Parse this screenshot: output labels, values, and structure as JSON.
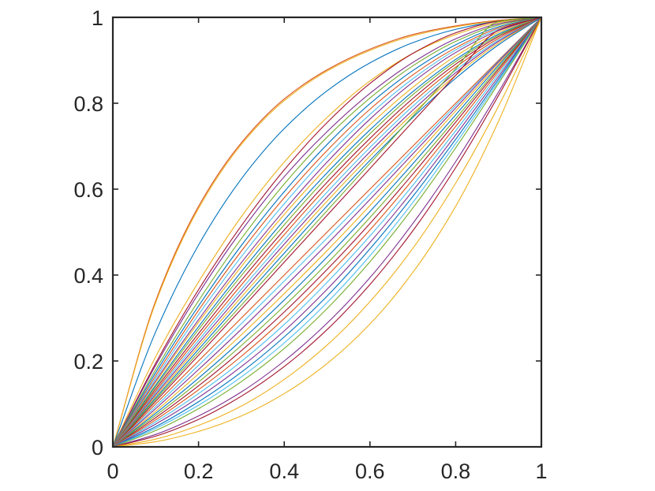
{
  "chart_data": {
    "type": "line",
    "title": "",
    "xlabel": "",
    "ylabel": "",
    "xlim": [
      0,
      1
    ],
    "ylim": [
      0,
      1
    ],
    "grid": false,
    "legend": "none",
    "box": true,
    "x_ticks": [
      "0",
      "0.2",
      "0.4",
      "0.6",
      "0.8",
      "1"
    ],
    "y_ticks": [
      "0",
      "0.2",
      "0.4",
      "0.6",
      "0.8",
      "1"
    ],
    "x_tick_values": [
      0,
      0.2,
      0.4,
      0.6,
      0.8,
      1
    ],
    "y_tick_values": [
      0,
      0.2,
      0.4,
      0.6,
      0.8,
      1
    ],
    "x": [
      0,
      0.1,
      0.2,
      0.3,
      0.4,
      0.5,
      0.6,
      0.7,
      0.8,
      0.9,
      1
    ],
    "palette": [
      "#0072BD",
      "#D95319",
      "#EDB120",
      "#7E2F8E",
      "#77AC30",
      "#4DBEEE",
      "#A2142F"
    ],
    "series": [
      {
        "color": "#D95319",
        "values": [
          0,
          0.34,
          0.56,
          0.708,
          0.81,
          0.878,
          0.926,
          0.96,
          0.98,
          0.993,
          1
        ]
      },
      {
        "color": "#EDB120",
        "values": [
          0,
          0.336,
          0.555,
          0.704,
          0.806,
          0.875,
          0.923,
          0.957,
          0.978,
          0.992,
          1
        ]
      },
      {
        "color": "#0072BD",
        "values": [
          0,
          0.268,
          0.47,
          0.624,
          0.741,
          0.829,
          0.894,
          0.941,
          0.972,
          0.991,
          1
        ]
      },
      {
        "color": "#EDB120",
        "values": [
          0,
          0.21,
          0.384,
          0.536,
          0.663,
          0.767,
          0.852,
          0.916,
          0.96,
          0.988,
          1
        ]
      },
      {
        "color": "#A2142F",
        "values": [
          0,
          0.195,
          0.366,
          0.515,
          0.645,
          0.755,
          0.846,
          0.916,
          0.964,
          0.991,
          1
        ]
      },
      {
        "color": "#7E2F8E",
        "values": [
          0,
          0.19,
          0.357,
          0.503,
          0.629,
          0.734,
          0.823,
          0.895,
          0.95,
          0.985,
          1
        ]
      },
      {
        "color": "#77AC30",
        "values": [
          0,
          0.18,
          0.34,
          0.485,
          0.612,
          0.721,
          0.812,
          0.887,
          0.944,
          0.982,
          1
        ]
      },
      {
        "color": "#0072BD",
        "values": [
          0,
          0.173,
          0.328,
          0.469,
          0.594,
          0.704,
          0.799,
          0.876,
          0.936,
          0.978,
          1
        ]
      },
      {
        "color": "#D95319",
        "values": [
          0,
          0.166,
          0.318,
          0.456,
          0.58,
          0.69,
          0.786,
          0.866,
          0.929,
          0.975,
          1
        ]
      },
      {
        "color": "#4DBEEE",
        "values": [
          0,
          0.16,
          0.308,
          0.443,
          0.566,
          0.677,
          0.774,
          0.857,
          0.924,
          0.972,
          1
        ]
      },
      {
        "color": "#7E2F8E",
        "values": [
          0,
          0.154,
          0.296,
          0.429,
          0.551,
          0.663,
          0.763,
          0.849,
          0.918,
          0.969,
          1
        ]
      },
      {
        "color": "#EDB120",
        "values": [
          0,
          0.15,
          0.29,
          0.42,
          0.541,
          0.651,
          0.75,
          0.837,
          0.91,
          0.965,
          1
        ]
      },
      {
        "color": "#0072BD",
        "values": [
          0,
          0.144,
          0.28,
          0.408,
          0.528,
          0.638,
          0.738,
          0.827,
          0.902,
          0.961,
          1
        ]
      },
      {
        "color": "#77AC30",
        "values": [
          0,
          0.14,
          0.273,
          0.399,
          0.517,
          0.628,
          0.729,
          0.82,
          0.897,
          0.958,
          1
        ]
      },
      {
        "color": "#A2142F",
        "values": [
          0,
          0.135,
          0.264,
          0.388,
          0.505,
          0.616,
          0.718,
          0.811,
          0.891,
          0.955,
          1
        ]
      },
      {
        "color": "#D95319",
        "values": [
          0,
          0.13,
          0.256,
          0.377,
          0.494,
          0.605,
          0.708,
          0.802,
          0.884,
          0.951,
          1
        ]
      },
      {
        "color": "#4DBEEE",
        "values": [
          0,
          0.126,
          0.248,
          0.367,
          0.482,
          0.593,
          0.697,
          0.793,
          0.877,
          0.947,
          1
        ]
      },
      {
        "color": "#7E2F8E",
        "values": [
          0,
          0.122,
          0.241,
          0.358,
          0.472,
          0.582,
          0.687,
          0.784,
          0.871,
          0.944,
          1
        ]
      },
      {
        "color": "#EDB120",
        "values": [
          0,
          0.118,
          0.234,
          0.349,
          0.462,
          0.572,
          0.677,
          0.776,
          0.865,
          0.94,
          1
        ]
      },
      {
        "color": "#0072BD",
        "values": [
          0,
          0.114,
          0.227,
          0.34,
          0.451,
          0.561,
          0.667,
          0.767,
          0.858,
          0.936,
          1
        ]
      },
      {
        "color": "#77AC30",
        "values": [
          0,
          0.11,
          0.22,
          0.33,
          0.44,
          0.55,
          0.66,
          0.77,
          0.88,
          0.99,
          1
        ]
      },
      {
        "color": "#A2142F",
        "values": [
          0,
          0.106,
          0.213,
          0.321,
          0.43,
          0.539,
          0.648,
          0.757,
          0.865,
          0.97,
          1
        ]
      },
      {
        "color": "#D95319",
        "values": [
          0,
          0.1,
          0.2,
          0.3,
          0.4,
          0.5,
          0.6,
          0.7,
          0.8,
          0.9,
          1
        ]
      },
      {
        "color": "#4DBEEE",
        "values": [
          0,
          0.094,
          0.19,
          0.287,
          0.386,
          0.486,
          0.588,
          0.691,
          0.795,
          0.898,
          1
        ]
      },
      {
        "color": "#7E2F8E",
        "values": [
          0,
          0.089,
          0.18,
          0.274,
          0.372,
          0.472,
          0.576,
          0.682,
          0.789,
          0.896,
          1
        ]
      },
      {
        "color": "#EDB120",
        "values": [
          0,
          0.083,
          0.17,
          0.261,
          0.357,
          0.457,
          0.562,
          0.671,
          0.782,
          0.892,
          1
        ]
      },
      {
        "color": "#0072BD",
        "values": [
          0,
          0.078,
          0.16,
          0.248,
          0.342,
          0.442,
          0.548,
          0.659,
          0.773,
          0.888,
          1
        ]
      },
      {
        "color": "#77AC30",
        "values": [
          0,
          0.073,
          0.151,
          0.236,
          0.328,
          0.427,
          0.534,
          0.647,
          0.764,
          0.883,
          1
        ]
      },
      {
        "color": "#A2142F",
        "values": [
          0,
          0.068,
          0.142,
          0.224,
          0.314,
          0.413,
          0.52,
          0.635,
          0.756,
          0.879,
          1
        ]
      },
      {
        "color": "#D95319",
        "values": [
          0,
          0.063,
          0.133,
          0.211,
          0.299,
          0.398,
          0.505,
          0.622,
          0.746,
          0.874,
          1
        ]
      },
      {
        "color": "#4DBEEE",
        "values": [
          0,
          0.058,
          0.124,
          0.199,
          0.285,
          0.383,
          0.491,
          0.609,
          0.736,
          0.868,
          1
        ]
      },
      {
        "color": "#7E2F8E",
        "values": [
          0,
          0.053,
          0.115,
          0.187,
          0.27,
          0.367,
          0.476,
          0.596,
          0.726,
          0.862,
          1
        ]
      },
      {
        "color": "#0072BD",
        "values": [
          0,
          0.047,
          0.105,
          0.174,
          0.256,
          0.351,
          0.461,
          0.583,
          0.716,
          0.856,
          1
        ]
      },
      {
        "color": "#4DBEEE",
        "values": [
          0,
          0.043,
          0.097,
          0.163,
          0.242,
          0.336,
          0.445,
          0.569,
          0.706,
          0.851,
          1
        ]
      },
      {
        "color": "#77AC30",
        "values": [
          0,
          0.038,
          0.089,
          0.152,
          0.229,
          0.322,
          0.431,
          0.556,
          0.696,
          0.846,
          1
        ]
      },
      {
        "color": "#7E2F8E",
        "values": [
          0,
          0.029,
          0.072,
          0.128,
          0.2,
          0.288,
          0.394,
          0.52,
          0.664,
          0.826,
          1
        ]
      },
      {
        "color": "#A2142F",
        "values": [
          0,
          0.025,
          0.064,
          0.118,
          0.187,
          0.273,
          0.378,
          0.503,
          0.65,
          0.818,
          1
        ]
      },
      {
        "color": "#EDB120",
        "values": [
          0,
          0.018,
          0.05,
          0.095,
          0.157,
          0.237,
          0.338,
          0.462,
          0.614,
          0.793,
          1
        ]
      },
      {
        "color": "#EDB120",
        "values": [
          0,
          0.012,
          0.036,
          0.072,
          0.124,
          0.194,
          0.286,
          0.406,
          0.56,
          0.758,
          1
        ]
      }
    ]
  }
}
